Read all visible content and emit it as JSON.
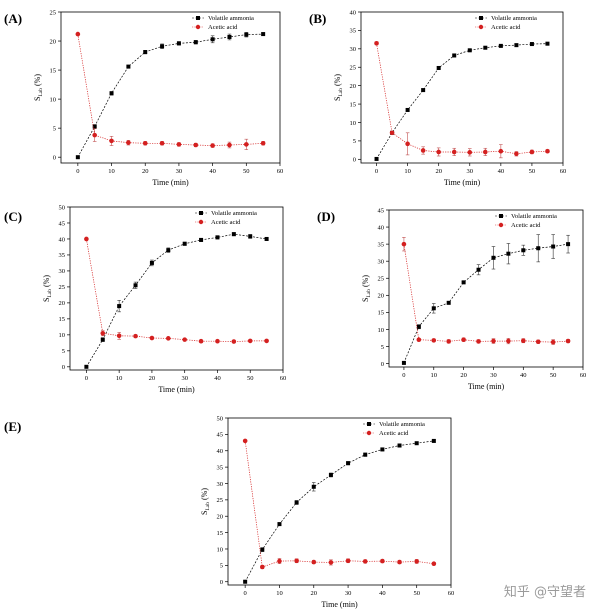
{
  "figure": {
    "watermark": "知乎 @守望者"
  },
  "chart_data": [
    {
      "id": "A",
      "panel_label": "(A)",
      "type": "line",
      "xlabel": "Time (min)",
      "ylabel_main": "S",
      "ylabel_sub": "Lab",
      "ylabel_unit": " (%)",
      "xlim": [
        -5,
        60
      ],
      "ylim": [
        -1,
        25
      ],
      "xticks": [
        0,
        10,
        20,
        30,
        40,
        50,
        60
      ],
      "yticks": [
        0,
        5,
        10,
        15,
        20,
        25
      ],
      "x": [
        0,
        5,
        10,
        15,
        20,
        25,
        30,
        35,
        40,
        45,
        50,
        55
      ],
      "series": [
        {
          "name": "Volatile ammonia",
          "color": "#000000",
          "marker": "square",
          "values": [
            0,
            5.3,
            11,
            15.6,
            18.1,
            19.1,
            19.6,
            19.8,
            20.3,
            20.7,
            21.1,
            21.2
          ],
          "errors": [
            0,
            0.3,
            0.3,
            0.2,
            0.3,
            0.4,
            0.3,
            0.3,
            0.6,
            0.5,
            0.4,
            0.2
          ]
        },
        {
          "name": "Acetic acid",
          "color": "#d42020",
          "marker": "circle",
          "values": [
            21.2,
            3.8,
            2.8,
            2.5,
            2.4,
            2.4,
            2.2,
            2.1,
            2.0,
            2.1,
            2.2,
            2.4
          ],
          "errors": [
            0,
            1.1,
            0.8,
            0.4,
            0.3,
            0.3,
            0.3,
            0.3,
            0.3,
            0.5,
            0.9,
            0.3
          ]
        }
      ]
    },
    {
      "id": "B",
      "panel_label": "(B)",
      "type": "line",
      "xlabel": "Time (min)",
      "ylabel_main": "S",
      "ylabel_sub": "Lab",
      "ylabel_unit": " (%)",
      "xlim": [
        -5,
        60
      ],
      "ylim": [
        -1,
        40
      ],
      "xticks": [
        0,
        10,
        20,
        30,
        40,
        50,
        60
      ],
      "yticks": [
        0,
        5,
        10,
        15,
        20,
        25,
        30,
        35,
        40
      ],
      "x": [
        0,
        5,
        10,
        15,
        20,
        25,
        30,
        35,
        40,
        45,
        50,
        55
      ],
      "series": [
        {
          "name": "Volatile ammonia",
          "color": "#000000",
          "marker": "square",
          "values": [
            0.1,
            7.2,
            13.4,
            18.8,
            24.8,
            28.2,
            29.6,
            30.3,
            30.8,
            31.0,
            31.3,
            31.4
          ],
          "errors": [
            0,
            0.3,
            0.3,
            0.3,
            0.4,
            0.4,
            0.3,
            0.3,
            0.3,
            0.3,
            0.3,
            0.2
          ]
        },
        {
          "name": "Acetic acid",
          "color": "#d42020",
          "marker": "circle",
          "values": [
            31.5,
            7.2,
            4.2,
            2.4,
            2.0,
            2.0,
            1.9,
            2.0,
            2.2,
            1.5,
            2.0,
            2.2
          ],
          "errors": [
            0.4,
            0.4,
            3.0,
            1.0,
            1.1,
            1.0,
            1.0,
            1.0,
            1.8,
            0.6,
            0.5,
            0.4
          ]
        }
      ]
    },
    {
      "id": "C",
      "panel_label": "(C)",
      "type": "line",
      "xlabel": "Time (min)",
      "ylabel_main": "S",
      "ylabel_sub": "Lab",
      "ylabel_unit": " (%)",
      "xlim": [
        -5,
        60
      ],
      "ylim": [
        -1,
        50
      ],
      "xticks": [
        0,
        10,
        20,
        30,
        40,
        50,
        60
      ],
      "yticks": [
        0,
        5,
        10,
        15,
        20,
        25,
        30,
        35,
        40,
        45,
        50
      ],
      "x": [
        0,
        5,
        10,
        15,
        20,
        25,
        30,
        35,
        40,
        45,
        50,
        55
      ],
      "series": [
        {
          "name": "Volatile ammonia",
          "color": "#000000",
          "marker": "square",
          "values": [
            0,
            8.5,
            19,
            25.5,
            32.5,
            36.5,
            38.5,
            39.7,
            40.5,
            41.5,
            40.8,
            40.0
          ],
          "errors": [
            0,
            0.6,
            1.8,
            1.0,
            0.9,
            0.7,
            0.5,
            0.5,
            0.5,
            0.5,
            0.6,
            0.5
          ]
        },
        {
          "name": "Acetic acid",
          "color": "#d42020",
          "marker": "circle",
          "values": [
            40.0,
            10.5,
            9.7,
            9.6,
            9.0,
            8.9,
            8.5,
            8.0,
            8.0,
            7.9,
            8.1,
            8.1
          ],
          "errors": [
            0.3,
            0.8,
            1.1,
            0.4,
            0.3,
            0.3,
            0.3,
            0.4,
            0.3,
            0.3,
            0.3,
            0.3
          ]
        }
      ]
    },
    {
      "id": "D",
      "panel_label": "(D)",
      "type": "line",
      "xlabel": "Time (min)",
      "ylabel_main": "S",
      "ylabel_sub": "Lab",
      "ylabel_unit": " (%)",
      "xlim": [
        -5,
        60
      ],
      "ylim": [
        -1,
        45
      ],
      "xticks": [
        0,
        10,
        20,
        30,
        40,
        50,
        60
      ],
      "yticks": [
        0,
        5,
        10,
        15,
        20,
        25,
        30,
        35,
        40,
        45
      ],
      "x": [
        0,
        5,
        10,
        15,
        20,
        25,
        30,
        35,
        40,
        45,
        50,
        55
      ],
      "series": [
        {
          "name": "Volatile ammonia",
          "color": "#000000",
          "marker": "square",
          "values": [
            0.2,
            10.8,
            16.2,
            17.8,
            23.8,
            27.5,
            31.0,
            32.2,
            33.2,
            33.8,
            34.3,
            35.0
          ],
          "errors": [
            0,
            0.6,
            1.4,
            0.4,
            0.3,
            1.5,
            3.3,
            3.0,
            1.5,
            4.0,
            3.5,
            2.6
          ]
        },
        {
          "name": "Acetic acid",
          "color": "#d42020",
          "marker": "circle",
          "values": [
            35.0,
            7.0,
            6.8,
            6.5,
            7.0,
            6.5,
            6.6,
            6.6,
            6.7,
            6.4,
            6.3,
            6.6
          ],
          "errors": [
            2.0,
            0.4,
            0.4,
            0.5,
            0.5,
            0.5,
            0.7,
            0.8,
            0.6,
            0.5,
            0.7,
            0.5
          ]
        }
      ]
    },
    {
      "id": "E",
      "panel_label": "(E)",
      "type": "line",
      "xlabel": "Time (min)",
      "ylabel_main": "S",
      "ylabel_sub": "Lab",
      "ylabel_unit": " (%)",
      "xlim": [
        -5,
        60
      ],
      "ylim": [
        -1,
        50
      ],
      "xticks": [
        0,
        10,
        20,
        30,
        40,
        50,
        60
      ],
      "yticks": [
        0,
        5,
        10,
        15,
        20,
        25,
        30,
        35,
        40,
        45,
        50
      ],
      "x": [
        0,
        5,
        10,
        15,
        20,
        25,
        30,
        35,
        40,
        45,
        50,
        55
      ],
      "series": [
        {
          "name": "Volatile ammonia",
          "color": "#000000",
          "marker": "square",
          "values": [
            0,
            9.8,
            17.6,
            24.2,
            29.0,
            32.6,
            36.2,
            38.8,
            40.4,
            41.6,
            42.3,
            43.0
          ],
          "errors": [
            0,
            0.6,
            0.4,
            0.6,
            1.3,
            0.6,
            0.5,
            0.5,
            0.4,
            0.4,
            0.4,
            0.4
          ]
        },
        {
          "name": "Acetic acid",
          "color": "#d42020",
          "marker": "circle",
          "values": [
            43.0,
            4.5,
            6.3,
            6.4,
            6.0,
            5.9,
            6.4,
            6.2,
            6.3,
            6.0,
            6.2,
            5.5
          ],
          "errors": [
            0,
            0.5,
            0.8,
            0.6,
            0.5,
            0.8,
            0.6,
            0.5,
            0.5,
            0.5,
            0.6,
            0.4
          ]
        }
      ]
    }
  ]
}
